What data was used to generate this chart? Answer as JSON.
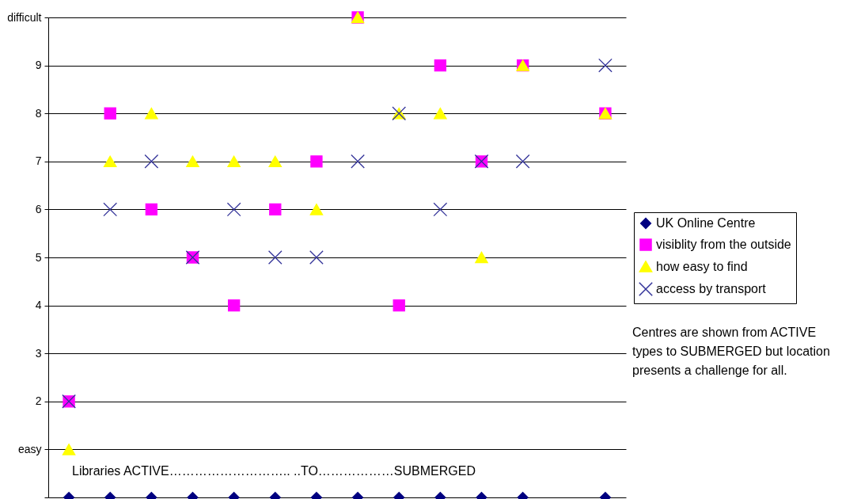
{
  "chart_data": {
    "type": "scatter",
    "categories": [
      null,
      null,
      null,
      null,
      null,
      null,
      null,
      null,
      null,
      null,
      null,
      null,
      null,
      null
    ],
    "series": [
      {
        "name": "UK Online Centre",
        "color": "#000080",
        "marker": "diamond",
        "values": [
          0,
          0,
          0,
          0,
          0,
          0,
          0,
          0,
          0,
          0,
          0,
          0,
          null,
          0
        ]
      },
      {
        "name": "visiblity from the outside",
        "color": "#ff00ff",
        "marker": "square",
        "values": [
          2,
          8,
          6,
          5,
          4,
          6,
          7,
          10,
          4,
          9,
          7,
          9,
          null,
          8
        ]
      },
      {
        "name": "how easy to find",
        "color": "#ffff00",
        "marker": "triangle",
        "values": [
          1,
          7,
          8,
          7,
          7,
          7,
          6,
          10,
          8,
          8,
          5,
          9,
          null,
          8
        ]
      },
      {
        "name": "access by transport",
        "color": "#333399",
        "marker": "cross",
        "values": [
          2,
          6,
          7,
          5,
          6,
          5,
          5,
          7,
          8,
          6,
          7,
          7,
          null,
          9
        ]
      }
    ],
    "ylim": [
      0,
      10
    ],
    "yticks": [
      {
        "value": 10,
        "label": "difficult"
      },
      9,
      8,
      7,
      6,
      5,
      4,
      3,
      2,
      {
        "value": 1,
        "label": "easy"
      },
      {
        "value": 0,
        "label": null
      }
    ],
    "grid": "y",
    "legend": "right",
    "annotations": [
      "Libraries    ACTIVE……………………….. ..TO………………SUBMERGED",
      "Centres are shown from ACTIVE types to SUBMERGED but location presents a challenge for all."
    ]
  }
}
